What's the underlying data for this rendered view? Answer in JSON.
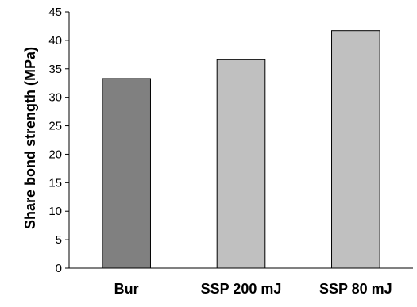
{
  "chart_data": {
    "type": "bar",
    "title": "",
    "xlabel": "",
    "ylabel": "Share bond strength (MPa)",
    "categories": [
      "Bur",
      "SSP 200 mJ",
      "SSP 80 mJ"
    ],
    "values": [
      33.3,
      36.6,
      41.7
    ],
    "bar_colors": [
      "#808080",
      "#c0c0c0",
      "#c0c0c0"
    ],
    "ylim": [
      0,
      45
    ],
    "yticks": [
      0,
      5,
      10,
      15,
      20,
      25,
      30,
      35,
      40,
      45
    ],
    "grid": false,
    "legend": "none"
  }
}
